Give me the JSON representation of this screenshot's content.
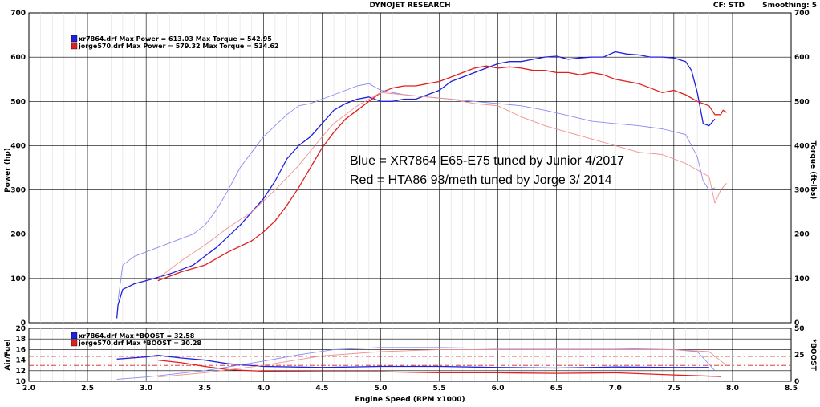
{
  "header": {
    "title": "DYNOJET RESEARCH",
    "cf_label": "CF: STD",
    "smoothing_label": "Smoothing: 5"
  },
  "chart_data": [
    {
      "type": "line",
      "title": "",
      "xlabel": "Engine Speed (RPM x1000)",
      "ylabel": "Power (hp)",
      "y2label": "Torque (ft-lbs)",
      "xlim": [
        2.0,
        8.5
      ],
      "ylim": [
        0,
        700
      ],
      "y2lim": [
        0,
        700
      ],
      "x_ticks": [
        "2.0",
        "2.5",
        "3.0",
        "3.5",
        "4.0",
        "4.5",
        "5.0",
        "5.5",
        "6.0",
        "6.5",
        "7.0",
        "7.5",
        "8.0",
        "8.5"
      ],
      "y_ticks": [
        "0",
        "100",
        "200",
        "300",
        "400",
        "500",
        "600",
        "700"
      ],
      "y2_ticks": [
        "0",
        "100",
        "200",
        "300",
        "400",
        "500",
        "600",
        "700"
      ],
      "grid": true,
      "legend_position": "top-left",
      "legend": [
        {
          "text": "xr7864.drf Max Power = 613.03 Max Torque = 542.95",
          "color": "#2020dd"
        },
        {
          "text": "jorge570.drf Max Power = 579.32 Max Torque = 534.62",
          "color": "#e02020"
        }
      ],
      "annotations": [
        "Blue = XR7864 E65-E75 tuned by Junior 4/2017",
        "Red = HTA86 93/meth tuned by Jorge 3/ 2014"
      ],
      "series": [
        {
          "name": "xr7864.drf Power",
          "color": "#2020dd",
          "weight": "heavy",
          "x": [
            2.75,
            2.76,
            2.8,
            2.9,
            3.0,
            3.2,
            3.4,
            3.6,
            3.8,
            4.0,
            4.1,
            4.2,
            4.3,
            4.4,
            4.5,
            4.6,
            4.7,
            4.8,
            4.9,
            5.0,
            5.1,
            5.2,
            5.3,
            5.4,
            5.5,
            5.6,
            5.7,
            5.8,
            5.9,
            6.0,
            6.1,
            6.2,
            6.3,
            6.4,
            6.5,
            6.6,
            6.7,
            6.8,
            6.9,
            7.0,
            7.1,
            7.2,
            7.3,
            7.4,
            7.5,
            7.6,
            7.65,
            7.7,
            7.75,
            7.8,
            7.85
          ],
          "y": [
            10,
            40,
            75,
            88,
            95,
            110,
            130,
            170,
            220,
            280,
            320,
            370,
            400,
            420,
            450,
            480,
            495,
            505,
            510,
            500,
            500,
            505,
            505,
            515,
            525,
            545,
            555,
            565,
            575,
            585,
            590,
            590,
            595,
            600,
            602,
            595,
            598,
            600,
            600,
            612,
            607,
            605,
            600,
            600,
            598,
            590,
            570,
            520,
            450,
            445,
            460
          ]
        },
        {
          "name": "jorge570.drf Power",
          "color": "#e02020",
          "weight": "heavy",
          "x": [
            3.1,
            3.3,
            3.5,
            3.7,
            3.9,
            4.0,
            4.1,
            4.2,
            4.3,
            4.4,
            4.5,
            4.6,
            4.7,
            4.8,
            4.9,
            5.0,
            5.1,
            5.2,
            5.3,
            5.4,
            5.5,
            5.6,
            5.7,
            5.8,
            5.9,
            6.0,
            6.1,
            6.2,
            6.3,
            6.4,
            6.5,
            6.6,
            6.7,
            6.8,
            6.9,
            7.0,
            7.1,
            7.2,
            7.3,
            7.4,
            7.5,
            7.6,
            7.7,
            7.8,
            7.85,
            7.9,
            7.92,
            7.95
          ],
          "y": [
            95,
            115,
            130,
            160,
            185,
            205,
            230,
            265,
            305,
            350,
            395,
            430,
            460,
            480,
            500,
            520,
            530,
            535,
            535,
            540,
            545,
            555,
            565,
            575,
            580,
            575,
            578,
            575,
            570,
            570,
            565,
            565,
            560,
            565,
            560,
            550,
            545,
            540,
            530,
            520,
            525,
            515,
            500,
            490,
            470,
            470,
            480,
            475
          ]
        },
        {
          "name": "xr7864.drf Torque",
          "color": "#8a8af0",
          "weight": "light",
          "x": [
            2.76,
            2.8,
            2.9,
            3.0,
            3.2,
            3.4,
            3.5,
            3.6,
            3.7,
            3.8,
            3.9,
            4.0,
            4.1,
            4.2,
            4.3,
            4.4,
            4.5,
            4.6,
            4.7,
            4.8,
            4.9,
            5.0,
            5.2,
            5.4,
            5.6,
            5.8,
            6.0,
            6.2,
            6.4,
            6.6,
            6.8,
            7.0,
            7.2,
            7.4,
            7.6,
            7.7,
            7.75,
            7.8,
            7.85
          ],
          "y": [
            50,
            130,
            150,
            160,
            180,
            200,
            220,
            255,
            300,
            350,
            385,
            420,
            445,
            470,
            490,
            495,
            505,
            515,
            525,
            535,
            540,
            525,
            515,
            510,
            505,
            500,
            495,
            490,
            480,
            468,
            455,
            450,
            445,
            438,
            425,
            375,
            320,
            300,
            305
          ]
        },
        {
          "name": "jorge570.drf Torque",
          "color": "#f09090",
          "weight": "light",
          "x": [
            3.1,
            3.3,
            3.5,
            3.7,
            3.9,
            4.1,
            4.3,
            4.5,
            4.6,
            4.7,
            4.8,
            4.9,
            5.0,
            5.2,
            5.4,
            5.6,
            5.8,
            6.0,
            6.2,
            6.4,
            6.6,
            6.8,
            7.0,
            7.2,
            7.4,
            7.6,
            7.8,
            7.85,
            7.9,
            7.95
          ],
          "y": [
            100,
            140,
            175,
            215,
            250,
            300,
            355,
            420,
            450,
            470,
            490,
            505,
            520,
            515,
            510,
            505,
            495,
            490,
            465,
            445,
            430,
            415,
            400,
            385,
            380,
            360,
            330,
            270,
            300,
            315
          ]
        }
      ]
    },
    {
      "type": "line",
      "title": "",
      "ylabel": "Air/Fuel",
      "y2label": "*BOOST",
      "xlim": [
        2.0,
        8.5
      ],
      "ylim": [
        10,
        20
      ],
      "y2lim": [
        0,
        50
      ],
      "y_ticks": [
        "10",
        "12",
        "14",
        "16",
        "18",
        "20"
      ],
      "y2_ticks": [
        "0",
        "25",
        "50"
      ],
      "grid": true,
      "reference_lines_afr": [
        13.0,
        14.7
      ],
      "legend_position": "top-left",
      "legend": [
        {
          "text": "xr7864.drf Max *BOOST = 32.58",
          "color": "#2020dd"
        },
        {
          "text": "jorge570.drf Max *BOOST = 30.28",
          "color": "#e02020"
        }
      ],
      "series": [
        {
          "name": "xr7864.drf Air/Fuel",
          "color": "#2020dd",
          "weight": "heavy",
          "axis": "left",
          "x": [
            2.75,
            3.0,
            3.1,
            3.3,
            3.5,
            3.7,
            4.0,
            4.5,
            5.0,
            5.5,
            6.0,
            6.5,
            7.0,
            7.5,
            7.8
          ],
          "y": [
            14.2,
            14.6,
            14.9,
            14.4,
            14.0,
            13.3,
            12.8,
            12.6,
            12.8,
            12.8,
            12.6,
            12.5,
            12.7,
            12.6,
            12.6
          ]
        },
        {
          "name": "jorge570.drf Air/Fuel",
          "color": "#e02020",
          "weight": "heavy",
          "axis": "left",
          "x": [
            3.1,
            3.3,
            3.5,
            3.7,
            4.0,
            4.5,
            5.0,
            5.5,
            6.0,
            6.5,
            7.0,
            7.5,
            7.9
          ],
          "y": [
            14.0,
            13.5,
            12.8,
            12.2,
            11.9,
            11.8,
            11.8,
            11.6,
            11.6,
            11.5,
            11.6,
            11.2,
            10.9
          ]
        },
        {
          "name": "xr7864.drf *BOOST",
          "color": "#8a8af0",
          "weight": "light",
          "axis": "right",
          "x": [
            2.75,
            3.0,
            3.5,
            4.0,
            4.3,
            4.6,
            5.0,
            5.5,
            6.0,
            6.5,
            7.0,
            7.5,
            7.7,
            7.85
          ],
          "y": [
            2,
            4,
            10,
            19,
            25,
            30,
            32,
            32,
            31,
            31,
            31,
            30,
            28,
            10
          ]
        },
        {
          "name": "jorge570.drf *BOOST",
          "color": "#f09090",
          "weight": "light",
          "axis": "right",
          "x": [
            3.1,
            3.5,
            4.0,
            4.5,
            5.0,
            5.5,
            6.0,
            6.5,
            7.0,
            7.5,
            7.8,
            7.95
          ],
          "y": [
            4,
            8,
            15,
            24,
            28,
            30,
            30,
            30,
            30,
            30,
            28,
            15
          ]
        }
      ]
    }
  ]
}
